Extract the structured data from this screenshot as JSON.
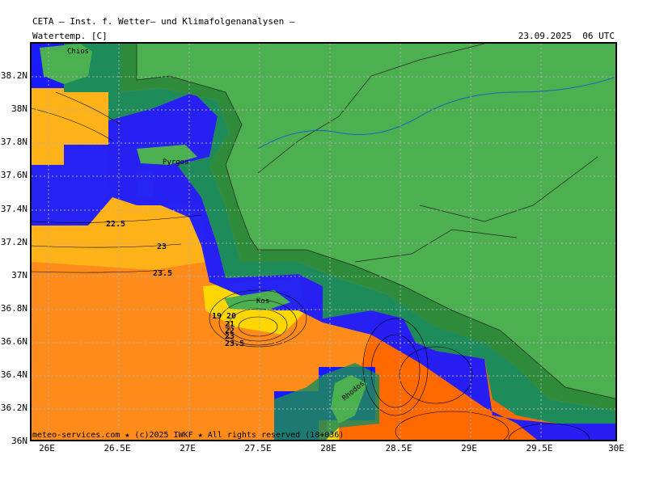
{
  "header": {
    "title": "CETA — Inst. f. Wetter— und Klimafolgenanalysen —",
    "variable": "Watertemp. [C]",
    "datetime": "23.09.2025  06 UTC"
  },
  "footer": "meteo-services.com ★ (c)2025 IWKF ★ All rights reserved (18+036)",
  "axes": {
    "x_ticks": [
      "26E",
      "26.5E",
      "27E",
      "27.5E",
      "28E",
      "28.5E",
      "29E",
      "29.5E",
      "30E"
    ],
    "y_ticks": [
      "38.2N",
      "38N",
      "37.8N",
      "37.6N",
      "37.4N",
      "37.2N",
      "37N",
      "36.8N",
      "36.6N",
      "36.4N",
      "36.2N",
      "36N"
    ]
  },
  "places": [
    "Chios",
    "Pyrgos",
    "Kos",
    "Rhodos"
  ],
  "contour_labels": [
    "22.5",
    "23",
    "23.5",
    "19",
    "20",
    "21",
    "22",
    "23",
    "23.5"
  ],
  "colors": {
    "land": "#4caf50",
    "sea_orange": "#ff8c1a",
    "sea_light_orange": "#ffb319",
    "sea_deep_orange": "#ff6a00",
    "yellow": "#ffd700",
    "blue": "#1a1aff",
    "teal": "#1e8b5a",
    "darkgreen": "#2e8b3a",
    "grid": "#b0b0b0",
    "river": "#1f5fbf"
  }
}
